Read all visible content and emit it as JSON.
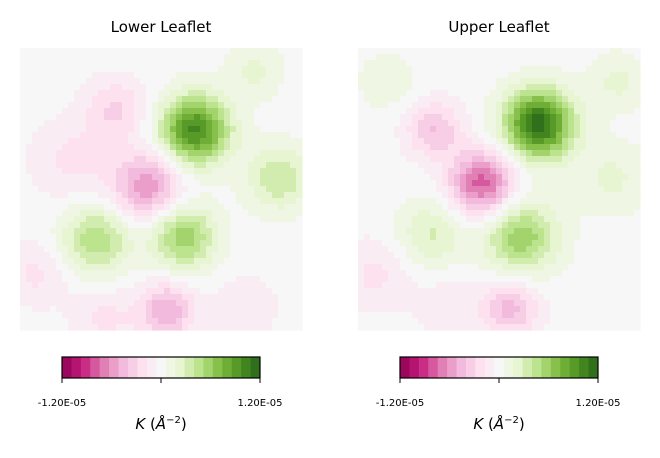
{
  "chart_data": [
    {
      "type": "heatmap",
      "title": "Lower Leaflet",
      "colormap": "PiYG",
      "colorbar": {
        "label_main": "K",
        "label_unit_open": " (",
        "label_unit": "Å",
        "label_exp": "−2",
        "label_unit_close": ")",
        "min": -1.2e-05,
        "max": 1.2e-05,
        "tick_labels": [
          "-1.20E-05",
          "1.20E-05"
        ],
        "levels": 21
      },
      "blobs": [
        {
          "x": 0.62,
          "y": 0.29,
          "value": 1e-05,
          "spread": 0.085
        },
        {
          "x": 0.45,
          "y": 0.49,
          "value": -6e-06,
          "spread": 0.085
        },
        {
          "x": 0.27,
          "y": 0.68,
          "value": 5e-06,
          "spread": 0.085
        },
        {
          "x": 0.58,
          "y": 0.67,
          "value": 6e-06,
          "spread": 0.08
        },
        {
          "x": 0.92,
          "y": 0.46,
          "value": 4e-06,
          "spread": 0.08
        },
        {
          "x": 0.52,
          "y": 0.93,
          "value": -5e-06,
          "spread": 0.07
        },
        {
          "x": 0.34,
          "y": 0.22,
          "value": -3e-06,
          "spread": 0.08
        },
        {
          "x": 0.18,
          "y": 0.4,
          "value": -2e-06,
          "spread": 0.1
        },
        {
          "x": 0.3,
          "y": 0.96,
          "value": -2e-06,
          "spread": 0.08
        },
        {
          "x": 0.83,
          "y": 0.08,
          "value": 2e-06,
          "spread": 0.07
        },
        {
          "x": 0.06,
          "y": 0.8,
          "value": -2e-06,
          "spread": 0.08
        },
        {
          "x": 0.8,
          "y": 0.92,
          "value": -1.5e-06,
          "spread": 0.08
        }
      ]
    },
    {
      "type": "heatmap",
      "title": "Upper Leaflet",
      "colormap": "PiYG",
      "colorbar": {
        "label_main": "K",
        "label_unit_open": " (",
        "label_unit": "Å",
        "label_exp": "−2",
        "label_unit_close": ")",
        "min": -1.2e-05,
        "max": 1.2e-05,
        "tick_labels": [
          "-1.20E-05",
          "1.20E-05"
        ],
        "levels": 21
      },
      "blobs": [
        {
          "x": 0.64,
          "y": 0.27,
          "value": 1.15e-05,
          "spread": 0.085
        },
        {
          "x": 0.44,
          "y": 0.48,
          "value": -8e-06,
          "spread": 0.08
        },
        {
          "x": 0.27,
          "y": 0.29,
          "value": -4e-06,
          "spread": 0.07
        },
        {
          "x": 0.58,
          "y": 0.67,
          "value": 6e-06,
          "spread": 0.09
        },
        {
          "x": 0.26,
          "y": 0.66,
          "value": 3e-06,
          "spread": 0.085
        },
        {
          "x": 0.54,
          "y": 0.92,
          "value": -4.5e-06,
          "spread": 0.07
        },
        {
          "x": 0.9,
          "y": 0.46,
          "value": 2e-06,
          "spread": 0.09
        },
        {
          "x": 0.06,
          "y": 0.8,
          "value": -2e-06,
          "spread": 0.09
        },
        {
          "x": 0.92,
          "y": 0.12,
          "value": 2e-06,
          "spread": 0.07
        },
        {
          "x": 0.1,
          "y": 0.12,
          "value": 1.5e-06,
          "spread": 0.07
        },
        {
          "x": 0.32,
          "y": 0.92,
          "value": -1.5e-06,
          "spread": 0.08
        }
      ]
    }
  ]
}
